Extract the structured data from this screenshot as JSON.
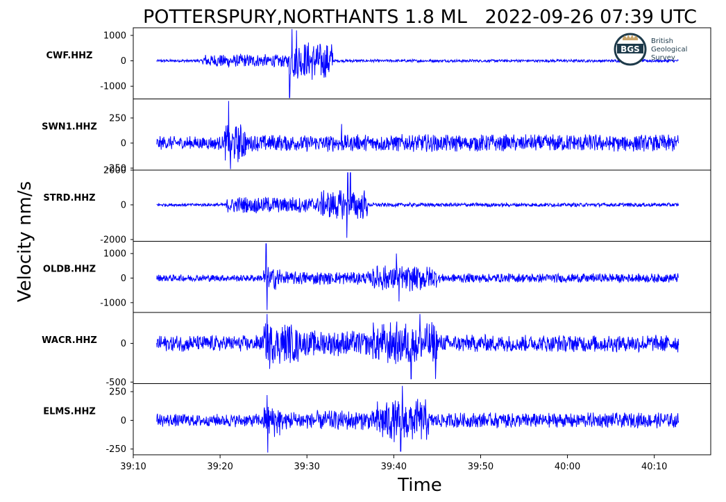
{
  "chart_data": {
    "type": "line",
    "title": "POTTERSPURY,NORTHANTS 1.8 ML",
    "timestamp": "2022-09-26 07:39 UTC",
    "ylabel": "Velocity nm/s",
    "xlabel": "Time",
    "x_ticks": [
      "39:10",
      "39:20",
      "39:30",
      "39:40",
      "39:50",
      "40:00",
      "40:10"
    ],
    "x_tick_seconds": [
      10,
      20,
      30,
      40,
      50,
      60,
      70
    ],
    "xlim": [
      10,
      76.5
    ],
    "trace_range_seconds": [
      12.7,
      72.8
    ],
    "logo": {
      "line1": "British",
      "line2": "Geological",
      "line3": "Survey",
      "mark": "BGS"
    },
    "series": [
      {
        "name": "CWF.HHZ",
        "ylim": [
          -1500,
          1300
        ],
        "yticks": [
          1000,
          0,
          -1000
        ],
        "ytick_labels": [
          "1000",
          "0",
          "-1000"
        ],
        "noise": 60,
        "segments": [
          [
            12.7,
            18.0,
            60
          ],
          [
            18.0,
            28.0,
            280
          ],
          [
            28.0,
            33.0,
            800
          ],
          [
            33.0,
            72.8,
            60
          ]
        ],
        "peaks": [
          [
            28.0,
            -1450
          ],
          [
            28.3,
            1250
          ],
          [
            28.8,
            1200
          ]
        ]
      },
      {
        "name": "SWN1.HHZ",
        "ylim": [
          -270,
          440
        ],
        "yticks": [
          250,
          0,
          -250
        ],
        "ytick_labels": [
          "250",
          "0",
          "-250"
        ],
        "noise": 60,
        "segments": [
          [
            12.7,
            20.5,
            70
          ],
          [
            20.5,
            23.0,
            200
          ],
          [
            23.0,
            72.8,
            90
          ]
        ],
        "peaks": [
          [
            21.0,
            420
          ],
          [
            21.2,
            -260
          ],
          [
            34.0,
            190
          ]
        ]
      },
      {
        "name": "STRD.HHZ",
        "ylim": [
          -2100,
          2000
        ],
        "yticks": [
          2000,
          0,
          -2000
        ],
        "ytick_labels": [
          "2000",
          "0",
          "-2000"
        ],
        "noise": 100,
        "segments": [
          [
            12.7,
            20.7,
            100
          ],
          [
            20.7,
            31.5,
            500
          ],
          [
            31.5,
            37.0,
            900
          ],
          [
            37.0,
            72.8,
            120
          ]
        ],
        "peaks": [
          [
            34.6,
            -1900
          ],
          [
            34.7,
            1850
          ],
          [
            35.0,
            1850
          ]
        ]
      },
      {
        "name": "OLDB.HHZ",
        "ylim": [
          -1400,
          1500
        ],
        "yticks": [
          1000,
          0,
          -1000
        ],
        "ytick_labels": [
          "1000",
          "0",
          "-1000"
        ],
        "noise": 100,
        "segments": [
          [
            12.7,
            25.0,
            150
          ],
          [
            25.0,
            27.0,
            500
          ],
          [
            27.0,
            37.5,
            280
          ],
          [
            37.5,
            45.0,
            550
          ],
          [
            45.0,
            72.8,
            200
          ]
        ],
        "peaks": [
          [
            25.3,
            1400
          ],
          [
            25.4,
            -1300
          ],
          [
            40.3,
            1000
          ],
          [
            40.6,
            -950
          ]
        ]
      },
      {
        "name": "WACR.HHZ",
        "ylim": [
          -520,
          400
        ],
        "yticks": [
          0,
          -500
        ],
        "ytick_labels": [
          "0",
          "-500"
        ],
        "noise": 90,
        "segments": [
          [
            12.7,
            25.0,
            110
          ],
          [
            25.0,
            29.0,
            280
          ],
          [
            29.0,
            37.5,
            170
          ],
          [
            37.5,
            45.0,
            290
          ],
          [
            45.0,
            72.8,
            120
          ]
        ],
        "peaks": [
          [
            25.4,
            380
          ],
          [
            25.7,
            -330
          ],
          [
            42.0,
            -460
          ],
          [
            44.8,
            -460
          ],
          [
            43.0,
            380
          ]
        ]
      },
      {
        "name": "ELMS.HHZ",
        "ylim": [
          -300,
          320
        ],
        "yticks": [
          250,
          0,
          -250
        ],
        "ytick_labels": [
          "250",
          "0",
          "-250"
        ],
        "noise": 40,
        "segments": [
          [
            12.7,
            25.0,
            60
          ],
          [
            25.0,
            27.0,
            150
          ],
          [
            27.0,
            38.0,
            90
          ],
          [
            38.0,
            44.0,
            190
          ],
          [
            44.0,
            72.8,
            70
          ]
        ],
        "peaks": [
          [
            25.5,
            -280
          ],
          [
            25.4,
            220
          ],
          [
            40.8,
            -270
          ],
          [
            41.0,
            300
          ]
        ]
      }
    ]
  }
}
